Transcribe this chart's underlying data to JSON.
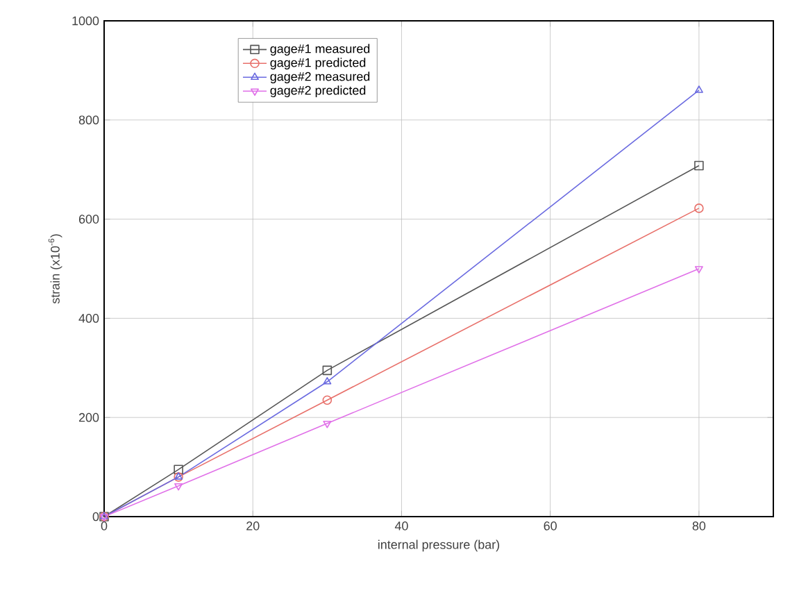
{
  "chart_data": {
    "type": "line",
    "xlabel": "internal pressure (bar)",
    "ylabel": "strain (x10$^{-6}$)",
    "x": [
      0,
      10,
      30,
      80
    ],
    "series": [
      {
        "name": "gage#1 measured",
        "color": "#555555",
        "values": [
          0,
          95,
          295,
          708
        ],
        "marker": "square"
      },
      {
        "name": "gage#1 predicted",
        "color": "#e8706a",
        "values": [
          0,
          80,
          235,
          622
        ],
        "marker": "circle"
      },
      {
        "name": "gage#2 measured",
        "color": "#6a6ae0",
        "values": [
          0,
          80,
          272,
          860
        ],
        "marker": "triangle"
      },
      {
        "name": "gage#2 predicted",
        "color": "#e070e8",
        "values": [
          0,
          62,
          188,
          500
        ],
        "marker": "triangle down"
      }
    ],
    "xlim": [
      0,
      90
    ],
    "ylim": [
      0,
      1000
    ],
    "xticks": [
      0,
      20,
      40,
      60,
      80
    ],
    "yticks": [
      0,
      200,
      400,
      600,
      800,
      1000
    ],
    "grid": true,
    "legend": "top left",
    "line_style": "solid"
  }
}
